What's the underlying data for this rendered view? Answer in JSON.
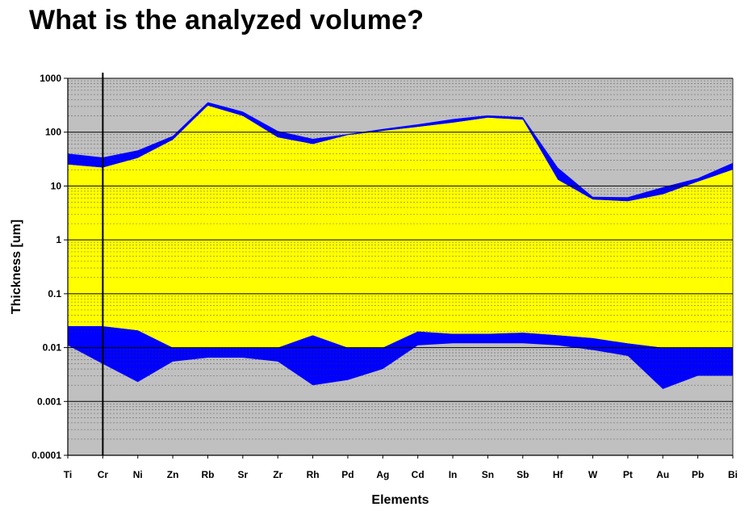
{
  "slide": {
    "title": "What is the analyzed volume?"
  },
  "chart_data": {
    "type": "area",
    "xlabel": "Elements",
    "ylabel": "Thickness [um]",
    "yscale": "log",
    "ylim": [
      0.0001,
      1000
    ],
    "yticks": [
      "0.0001",
      "0.001",
      "0.01",
      "0.1",
      "1",
      "10",
      "100",
      "1000"
    ],
    "ytick_values": [
      0.0001,
      0.001,
      0.01,
      0.1,
      1,
      10,
      100,
      1000
    ],
    "categories": [
      "Ti",
      "Cr",
      "Ni",
      "Zn",
      "Rb",
      "Sr",
      "Zr",
      "Rh",
      "Pd",
      "Ag",
      "Cd",
      "In",
      "Sn",
      "Sb",
      "Hf",
      "W",
      "Pt",
      "Au",
      "Pb",
      "Bi"
    ],
    "grid": true,
    "marker_category": "Cr",
    "series": [
      {
        "color": "#0000ff",
        "upper": [
          40,
          34,
          46,
          85,
          360,
          240,
          105,
          75,
          92,
          115,
          140,
          175,
          205,
          190,
          22,
          6.3,
          6.2,
          9.5,
          14,
          27
        ],
        "lower": [
          25,
          22,
          33,
          72,
          310,
          200,
          80,
          60,
          88,
          105,
          125,
          150,
          185,
          170,
          13,
          5.6,
          5.2,
          7.0,
          12,
          20
        ]
      },
      {
        "color": "#0000ff",
        "upper": [
          0.025,
          0.025,
          0.021,
          0.01,
          0.01,
          0.01,
          0.01,
          0.017,
          0.01,
          0.01,
          0.02,
          0.018,
          0.018,
          0.019,
          0.017,
          0.015,
          0.012,
          0.01,
          0.01,
          0.01
        ],
        "lower": [
          0.011,
          0.005,
          0.0023,
          0.0055,
          0.0065,
          0.0065,
          0.0055,
          0.002,
          0.0025,
          0.004,
          0.011,
          0.012,
          0.012,
          0.012,
          0.011,
          0.009,
          0.007,
          0.0017,
          0.003,
          0.003
        ]
      },
      {
        "color": "#ffff00",
        "upper": [
          25,
          22,
          33,
          72,
          310,
          200,
          80,
          60,
          88,
          105,
          125,
          150,
          185,
          170,
          13,
          5.6,
          5.2,
          7.0,
          12,
          20
        ],
        "lower": [
          0.025,
          0.025,
          0.021,
          0.01,
          0.01,
          0.01,
          0.01,
          0.017,
          0.01,
          0.01,
          0.02,
          0.018,
          0.018,
          0.019,
          0.017,
          0.015,
          0.012,
          0.01,
          0.01,
          0.01
        ]
      }
    ],
    "colors": {
      "plot_background": "#c0c0c0",
      "grid": "#333333",
      "major_grid": "#000000"
    }
  }
}
